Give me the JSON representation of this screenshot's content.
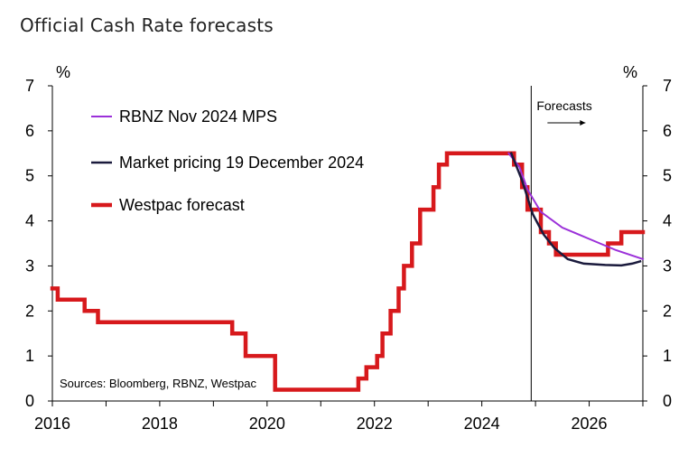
{
  "chart_data": {
    "type": "line",
    "title": "Official Cash Rate forecasts",
    "ylabel_left": "%",
    "ylabel_right": "%",
    "xlim": [
      2016,
      2027
    ],
    "ylim": [
      0,
      7
    ],
    "xticks": [
      2016,
      2018,
      2020,
      2022,
      2024,
      2026
    ],
    "yticks": [
      0,
      1,
      2,
      3,
      4,
      5,
      6,
      7
    ],
    "forecast_start": 2024.92,
    "annotation": "Forecasts",
    "source_note": "Sources: Bloomberg, RBNZ, Westpac",
    "series": [
      {
        "name": "RBNZ Nov 2024 MPS",
        "color": "#9b30d9",
        "step": false,
        "points": [
          [
            2024.5,
            5.5
          ],
          [
            2024.7,
            5.2
          ],
          [
            2024.85,
            4.7
          ],
          [
            2025.1,
            4.2
          ],
          [
            2025.5,
            3.85
          ],
          [
            2026.0,
            3.6
          ],
          [
            2026.5,
            3.35
          ],
          [
            2027.0,
            3.15
          ]
        ]
      },
      {
        "name": "Market pricing 19 December 2024",
        "color": "#1a1a3c",
        "step": false,
        "points": [
          [
            2024.55,
            5.5
          ],
          [
            2024.75,
            4.9
          ],
          [
            2024.95,
            4.15
          ],
          [
            2025.15,
            3.7
          ],
          [
            2025.35,
            3.4
          ],
          [
            2025.6,
            3.15
          ],
          [
            2025.9,
            3.05
          ],
          [
            2026.3,
            3.02
          ],
          [
            2026.6,
            3.01
          ],
          [
            2026.8,
            3.05
          ],
          [
            2026.95,
            3.1
          ]
        ]
      },
      {
        "name": "Westpac forecast",
        "color": "#d7191c",
        "step": true,
        "points": [
          [
            2016.0,
            2.5
          ],
          [
            2016.1,
            2.5
          ],
          [
            2016.1,
            2.25
          ],
          [
            2016.6,
            2.25
          ],
          [
            2016.6,
            2.0
          ],
          [
            2016.85,
            2.0
          ],
          [
            2016.85,
            1.75
          ],
          [
            2019.35,
            1.75
          ],
          [
            2019.35,
            1.5
          ],
          [
            2019.6,
            1.5
          ],
          [
            2019.6,
            1.0
          ],
          [
            2020.15,
            1.0
          ],
          [
            2020.15,
            0.25
          ],
          [
            2021.7,
            0.25
          ],
          [
            2021.7,
            0.5
          ],
          [
            2021.85,
            0.5
          ],
          [
            2021.85,
            0.75
          ],
          [
            2022.05,
            0.75
          ],
          [
            2022.05,
            1.0
          ],
          [
            2022.15,
            1.0
          ],
          [
            2022.15,
            1.5
          ],
          [
            2022.3,
            1.5
          ],
          [
            2022.3,
            2.0
          ],
          [
            2022.45,
            2.0
          ],
          [
            2022.45,
            2.5
          ],
          [
            2022.55,
            2.5
          ],
          [
            2022.55,
            3.0
          ],
          [
            2022.7,
            3.0
          ],
          [
            2022.7,
            3.5
          ],
          [
            2022.85,
            3.5
          ],
          [
            2022.85,
            4.25
          ],
          [
            2023.1,
            4.25
          ],
          [
            2023.1,
            4.75
          ],
          [
            2023.2,
            4.75
          ],
          [
            2023.2,
            5.25
          ],
          [
            2023.35,
            5.25
          ],
          [
            2023.35,
            5.5
          ],
          [
            2024.6,
            5.5
          ],
          [
            2024.6,
            5.25
          ],
          [
            2024.75,
            5.25
          ],
          [
            2024.75,
            4.75
          ],
          [
            2024.85,
            4.75
          ],
          [
            2024.85,
            4.25
          ],
          [
            2025.1,
            4.25
          ],
          [
            2025.1,
            3.75
          ],
          [
            2025.25,
            3.75
          ],
          [
            2025.25,
            3.5
          ],
          [
            2025.38,
            3.5
          ],
          [
            2025.38,
            3.25
          ],
          [
            2026.35,
            3.25
          ],
          [
            2026.35,
            3.5
          ],
          [
            2026.6,
            3.5
          ],
          [
            2026.6,
            3.75
          ],
          [
            2027.0,
            3.75
          ]
        ]
      }
    ]
  }
}
